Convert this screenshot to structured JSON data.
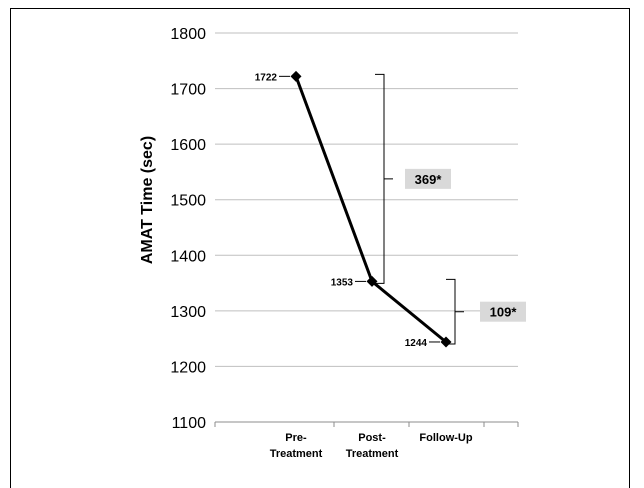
{
  "chart_data": {
    "type": "line",
    "title": "",
    "xlabel": "",
    "ylabel": "AMAT Time  (sec)",
    "ylim": [
      1100,
      1800
    ],
    "yticks": [
      1100,
      1200,
      1300,
      1400,
      1500,
      1600,
      1700,
      1800
    ],
    "grid": true,
    "categories": [
      [
        "Pre-",
        "Treatment"
      ],
      [
        "Post-",
        "Treatment"
      ],
      [
        "Follow-Up"
      ]
    ],
    "series": [
      {
        "values": [
          1722,
          1353,
          1244
        ],
        "labels": [
          "1722",
          "1353",
          "1244"
        ],
        "marker": "diamond",
        "color": "#000000"
      }
    ],
    "annotations": [
      {
        "from_index": 0,
        "to_index": 1,
        "text": "369*"
      },
      {
        "from_index": 1,
        "to_index": 2,
        "text": "109*"
      }
    ],
    "colors": {
      "grid": "#bfbfbf",
      "annotation_box": "#d9d9d9"
    }
  }
}
